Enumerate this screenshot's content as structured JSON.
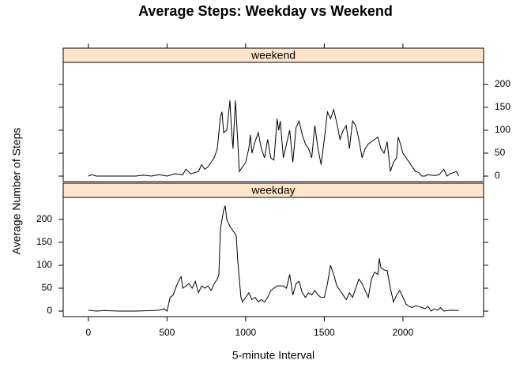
{
  "chart_data": {
    "type": "line",
    "title": "Average Steps: Weekday vs Weekend",
    "x_label": "5-minute Interval",
    "y_label": "Average Number of Steps",
    "xlim": [
      -160,
      2513
    ],
    "ylim": [
      -12,
      248
    ],
    "xticks": [
      0,
      500,
      1000,
      1500,
      2000
    ],
    "yticks": [
      0,
      50,
      100,
      150,
      200
    ],
    "strip_color": "#ffe5cc",
    "series": [
      {
        "name": "weekend",
        "color": "#000000",
        "x": [
          0,
          25,
          50,
          100,
          200,
          300,
          350,
          400,
          450,
          500,
          550,
          600,
          620,
          650,
          700,
          720,
          740,
          760,
          780,
          800,
          820,
          840,
          850,
          860,
          880,
          900,
          910,
          920,
          935,
          950,
          960,
          980,
          1000,
          1020,
          1030,
          1040,
          1060,
          1080,
          1100,
          1120,
          1140,
          1160,
          1180,
          1200,
          1210,
          1220,
          1240,
          1260,
          1280,
          1300,
          1320,
          1340,
          1360,
          1380,
          1400,
          1420,
          1440,
          1460,
          1480,
          1500,
          1520,
          1540,
          1560,
          1580,
          1600,
          1620,
          1640,
          1660,
          1680,
          1700,
          1720,
          1740,
          1760,
          1780,
          1800,
          1820,
          1840,
          1860,
          1880,
          1900,
          1920,
          1940,
          1960,
          1970,
          1980,
          2000,
          2020,
          2040,
          2060,
          2080,
          2100,
          2120,
          2140,
          2160,
          2200,
          2230,
          2260,
          2280,
          2300,
          2340,
          2355
        ],
        "values": [
          0,
          3,
          0,
          0,
          0,
          0,
          2,
          0,
          3,
          0,
          5,
          3,
          15,
          5,
          10,
          25,
          15,
          20,
          30,
          40,
          60,
          130,
          140,
          95,
          100,
          165,
          100,
          60,
          165,
          75,
          10,
          20,
          30,
          60,
          90,
          50,
          75,
          95,
          60,
          40,
          80,
          40,
          35,
          125,
          100,
          120,
          40,
          70,
          100,
          30,
          105,
          120,
          90,
          70,
          60,
          40,
          110,
          60,
          25,
          80,
          140,
          125,
          145,
          115,
          80,
          100,
          110,
          60,
          120,
          110,
          80,
          40,
          60,
          70,
          75,
          80,
          85,
          60,
          50,
          75,
          10,
          30,
          40,
          85,
          75,
          50,
          40,
          30,
          20,
          10,
          8,
          0,
          0,
          3,
          1,
          3,
          15,
          0,
          5,
          10,
          0
        ]
      },
      {
        "name": "weekday",
        "color": "#000000",
        "x": [
          0,
          50,
          100,
          200,
          300,
          400,
          450,
          480,
          500,
          520,
          540,
          560,
          580,
          590,
          600,
          620,
          640,
          660,
          680,
          700,
          720,
          740,
          760,
          780,
          800,
          820,
          830,
          840,
          850,
          860,
          870,
          880,
          900,
          920,
          940,
          950,
          960,
          970,
          980,
          1000,
          1020,
          1040,
          1060,
          1080,
          1100,
          1120,
          1140,
          1160,
          1180,
          1200,
          1220,
          1240,
          1260,
          1280,
          1300,
          1320,
          1340,
          1360,
          1380,
          1400,
          1420,
          1440,
          1460,
          1480,
          1500,
          1520,
          1540,
          1560,
          1580,
          1600,
          1620,
          1640,
          1660,
          1680,
          1700,
          1720,
          1740,
          1760,
          1780,
          1800,
          1820,
          1840,
          1850,
          1860,
          1880,
          1900,
          1920,
          1940,
          1960,
          1980,
          2000,
          2020,
          2040,
          2060,
          2080,
          2100,
          2120,
          2140,
          2160,
          2180,
          2200,
          2220,
          2240,
          2260,
          2300,
          2355
        ],
        "values": [
          2,
          0,
          1,
          0,
          0,
          1,
          2,
          5,
          0,
          30,
          35,
          55,
          70,
          75,
          50,
          55,
          60,
          50,
          65,
          40,
          55,
          50,
          55,
          45,
          60,
          70,
          80,
          180,
          200,
          220,
          230,
          200,
          185,
          175,
          165,
          110,
          70,
          30,
          20,
          30,
          40,
          25,
          30,
          20,
          25,
          20,
          30,
          45,
          50,
          55,
          55,
          55,
          50,
          80,
          35,
          60,
          65,
          40,
          30,
          40,
          35,
          45,
          35,
          30,
          30,
          60,
          100,
          80,
          55,
          45,
          35,
          25,
          40,
          30,
          50,
          70,
          60,
          45,
          30,
          70,
          85,
          80,
          115,
          95,
          90,
          88,
          50,
          20,
          35,
          45,
          30,
          15,
          10,
          8,
          12,
          10,
          8,
          5,
          10,
          0,
          5,
          2,
          8,
          0,
          2,
          1
        ]
      }
    ]
  }
}
